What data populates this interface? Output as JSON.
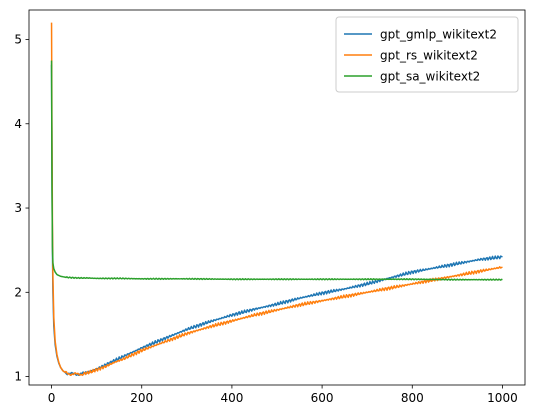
{
  "chart_data": {
    "type": "line",
    "title": "",
    "xlabel": "",
    "ylabel": "",
    "xlim": [
      -50,
      1050
    ],
    "ylim": [
      0.9,
      5.35
    ],
    "xticks": [
      0,
      200,
      400,
      600,
      800,
      1000
    ],
    "yticks": [
      1,
      2,
      3,
      4,
      5
    ],
    "grid": false,
    "legend_position": "top-right",
    "series": [
      {
        "name": "gpt_gmlp_wikitext2",
        "color": "#1f77b4",
        "x": [
          0,
          1,
          2,
          3,
          5,
          8,
          12,
          16,
          20,
          25,
          30,
          35,
          40,
          45,
          50,
          55,
          60,
          65,
          70,
          80,
          90,
          100,
          120,
          140,
          160,
          180,
          200,
          250,
          300,
          350,
          400,
          450,
          500,
          550,
          600,
          650,
          700,
          750,
          800,
          850,
          900,
          950,
          1000
        ],
        "y": [
          4.7,
          3.4,
          2.5,
          2.0,
          1.6,
          1.38,
          1.24,
          1.16,
          1.11,
          1.07,
          1.05,
          1.04,
          1.035,
          1.03,
          1.03,
          1.03,
          1.03,
          1.035,
          1.04,
          1.05,
          1.07,
          1.09,
          1.14,
          1.19,
          1.24,
          1.29,
          1.34,
          1.45,
          1.56,
          1.65,
          1.73,
          1.8,
          1.86,
          1.93,
          1.99,
          2.04,
          2.1,
          2.17,
          2.24,
          2.29,
          2.34,
          2.39,
          2.42
        ]
      },
      {
        "name": "gpt_rs_wikitext2",
        "color": "#ff7f0e",
        "x": [
          0,
          1,
          2,
          3,
          5,
          8,
          12,
          16,
          20,
          25,
          30,
          35,
          40,
          45,
          50,
          55,
          60,
          65,
          70,
          80,
          90,
          100,
          120,
          140,
          160,
          180,
          200,
          250,
          300,
          350,
          400,
          450,
          500,
          550,
          600,
          650,
          700,
          750,
          800,
          850,
          900,
          950,
          1000
        ],
        "y": [
          5.2,
          3.8,
          2.8,
          2.2,
          1.7,
          1.42,
          1.26,
          1.17,
          1.11,
          1.07,
          1.05,
          1.04,
          1.035,
          1.03,
          1.03,
          1.025,
          1.025,
          1.03,
          1.035,
          1.045,
          1.06,
          1.08,
          1.12,
          1.17,
          1.21,
          1.26,
          1.31,
          1.41,
          1.51,
          1.59,
          1.66,
          1.73,
          1.79,
          1.85,
          1.9,
          1.95,
          2.0,
          2.05,
          2.1,
          2.15,
          2.2,
          2.25,
          2.3
        ]
      },
      {
        "name": "gpt_sa_wikitext2",
        "color": "#2ca02c",
        "x": [
          0,
          1,
          2,
          3,
          5,
          8,
          12,
          16,
          20,
          30,
          40,
          60,
          80,
          100,
          150,
          200,
          300,
          400,
          500,
          600,
          700,
          800,
          900,
          1000
        ],
        "y": [
          4.75,
          3.2,
          2.55,
          2.35,
          2.28,
          2.24,
          2.21,
          2.2,
          2.19,
          2.18,
          2.175,
          2.17,
          2.17,
          2.165,
          2.165,
          2.16,
          2.16,
          2.155,
          2.155,
          2.155,
          2.155,
          2.155,
          2.15,
          2.15
        ]
      }
    ]
  }
}
